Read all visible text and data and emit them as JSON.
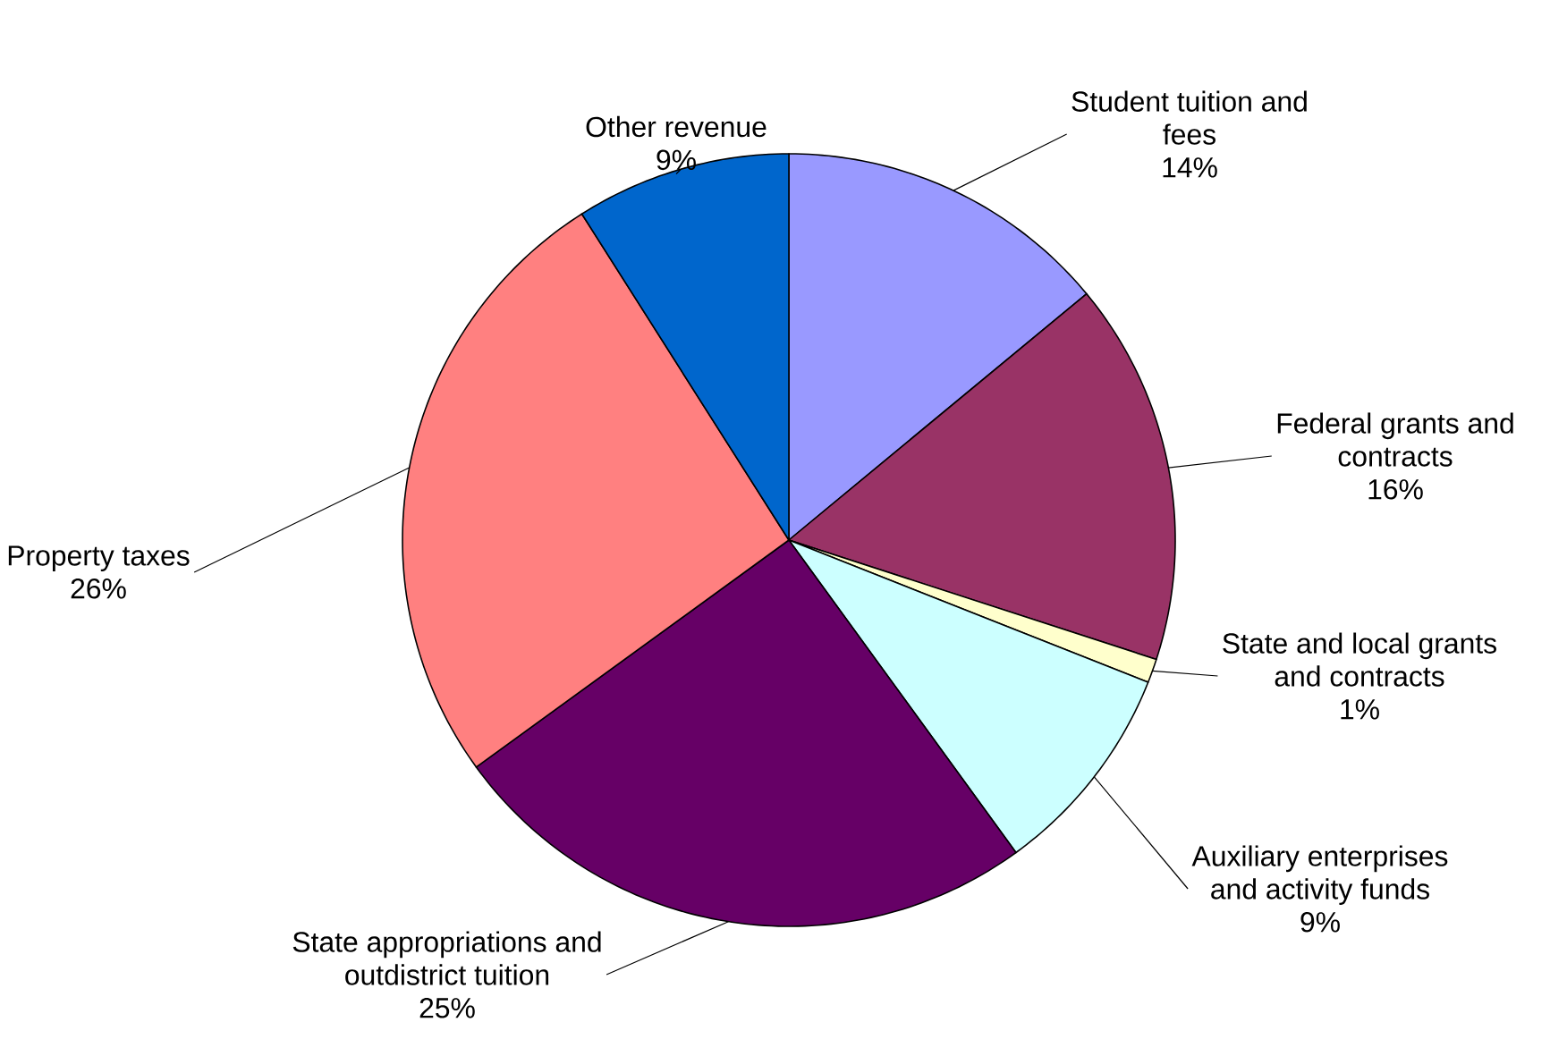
{
  "chart_data": {
    "type": "pie",
    "categories": [
      "Student tuition and fees",
      "Federal grants and contracts",
      "State and local grants and contracts",
      "Auxiliary enterprises and activity funds",
      "State appropriations and outdistrict tuition",
      "Property taxes",
      "Other revenue"
    ],
    "values": [
      14,
      16,
      1,
      9,
      25,
      26,
      9
    ],
    "value_labels": [
      "14%",
      "16%",
      "1%",
      "9%",
      "25%",
      "26%",
      "9%"
    ],
    "colors": [
      "#9999ff",
      "#993366",
      "#ffffcc",
      "#ccffff",
      "#660066",
      "#ff8080",
      "#0066cc"
    ]
  }
}
